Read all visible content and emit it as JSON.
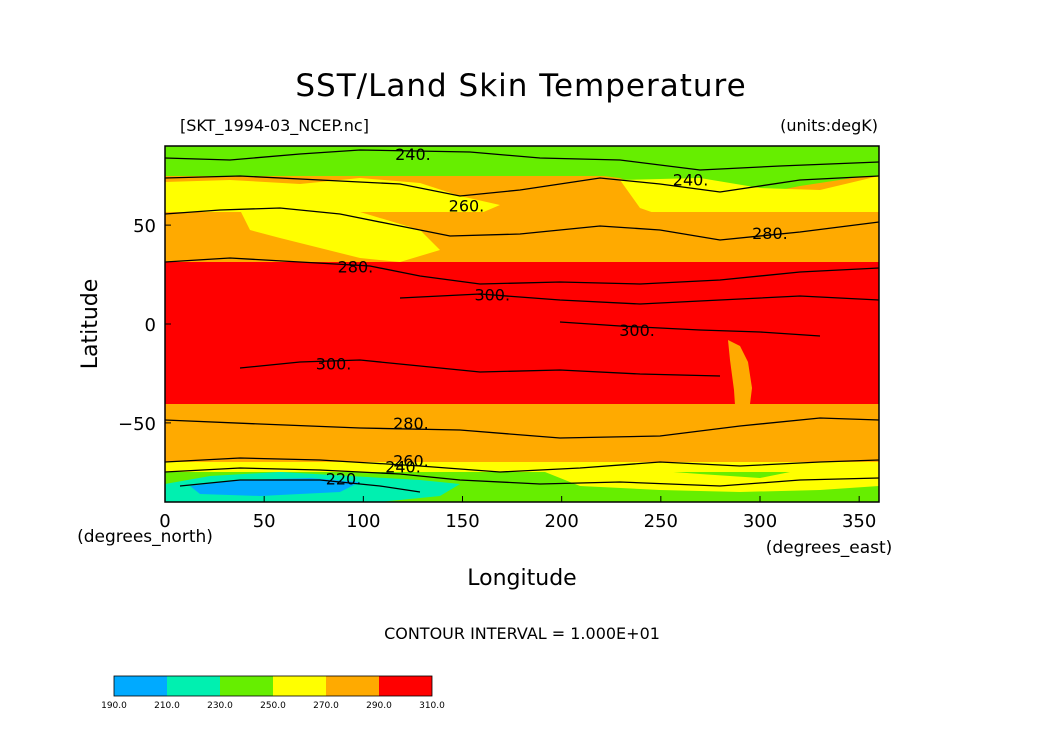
{
  "chart_data": {
    "type": "heatmap",
    "title": "SST/Land Skin Temperature",
    "source_label": "[SKT_1994-03_NCEP.nc]",
    "units_label": "(units:degK)",
    "xlabel": "Longitude",
    "ylabel": "Latitude",
    "x_units": "(degrees_east)",
    "y_units": "(degrees_north)",
    "xlim": [
      0,
      360
    ],
    "ylim": [
      -90,
      90
    ],
    "x_ticks": [
      0,
      50,
      100,
      150,
      200,
      250,
      300,
      350
    ],
    "y_ticks": [
      50,
      0,
      -50
    ],
    "x_tick_labels": [
      "0",
      "50",
      "100",
      "150",
      "200",
      "250",
      "300",
      "350"
    ],
    "y_tick_labels": [
      "50",
      "0",
      "−50"
    ],
    "contour_interval_text": "CONTOUR INTERVAL = 1.000E+01",
    "colorbar": {
      "levels": [
        "190.0",
        "210.0",
        "230.0",
        "250.0",
        "270.0",
        "290.0",
        "310.0"
      ],
      "colors": [
        "#00aaff",
        "#00f0b0",
        "#66ee00",
        "#ffff00",
        "#ffaa00",
        "#ff0000"
      ]
    },
    "contour_labels": [
      {
        "text": "240.",
        "lon": 125,
        "lat": 86
      },
      {
        "text": "240.",
        "lon": 265,
        "lat": 73
      },
      {
        "text": "260.",
        "lon": 152,
        "lat": 60
      },
      {
        "text": "280.",
        "lon": 305,
        "lat": 46
      },
      {
        "text": "280.",
        "lon": 96,
        "lat": 29
      },
      {
        "text": "300.",
        "lon": 165,
        "lat": 15
      },
      {
        "text": "300.",
        "lon": 238,
        "lat": -3
      },
      {
        "text": "300.",
        "lon": 85,
        "lat": -20
      },
      {
        "text": "280.",
        "lon": 124,
        "lat": -50
      },
      {
        "text": "260.",
        "lon": 124,
        "lat": -69
      },
      {
        "text": "240.",
        "lon": 120,
        "lat": -72
      },
      {
        "text": "220.",
        "lon": 90,
        "lat": -78
      }
    ]
  }
}
